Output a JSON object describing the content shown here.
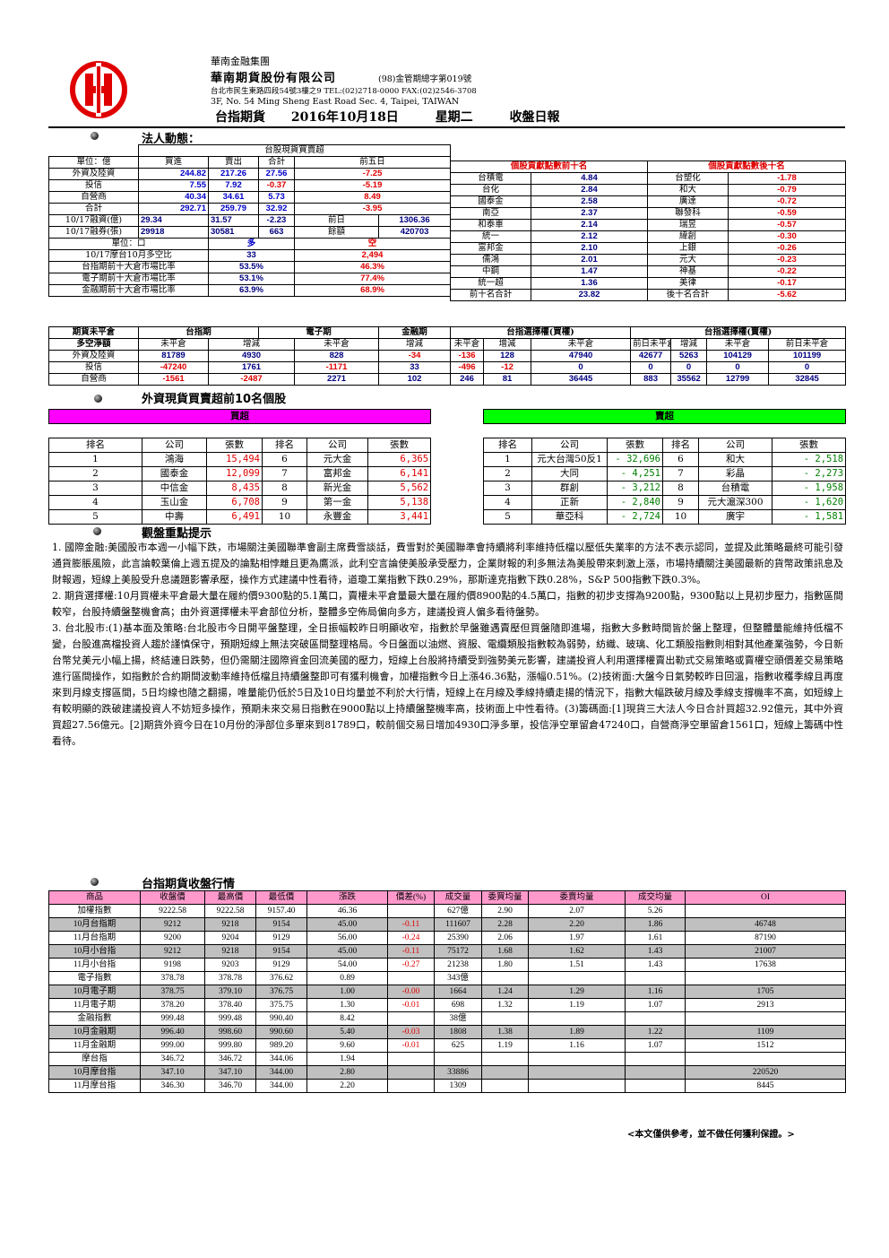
{
  "header": {
    "group": "華南金融集團",
    "company": "華南期貨股份有限公司",
    "license": "(98)金管期總字第019號",
    "address_zh": "台北市民生東路四段54號3樓之9 TEL:(02)2718-0000 FAX:(02)2546-3708",
    "address_en": "3F, No. 54 Ming Sheng East Road Sec. 4, Taipei, TAIWAN",
    "report_name": "台指期貨",
    "date": "2016年10月18日",
    "weekday": "星期二",
    "report_type": "收盤日報"
  },
  "institutional": {
    "title": "法人動態：",
    "spot_header": "台股現貨買賣超",
    "unit": "單位：億",
    "cols": [
      "買進",
      "賣出",
      "合計",
      "前五日"
    ],
    "rows": [
      {
        "name": "外資及陸資",
        "buy": "244.82",
        "sell": "217.26",
        "net": "27.56",
        "prev5": "-7.25"
      },
      {
        "name": "投信",
        "buy": "7.55",
        "sell": "7.92",
        "net": "-0.37",
        "prev5": "-5.19"
      },
      {
        "name": "自營商",
        "buy": "40.34",
        "sell": "34.61",
        "net": "5.73",
        "prev5": "8.49"
      },
      {
        "name": "合計",
        "buy": "292.71",
        "sell": "259.79",
        "net": "32.92",
        "prev5": "-3.95"
      }
    ],
    "margin_rows": [
      {
        "name": "10/17融資(億)",
        "a": "29.34",
        "b": "31.57",
        "c": "-2.23",
        "d_label": "前日",
        "d_val": "1306.36"
      },
      {
        "name": "10/17融券(張)",
        "a": "29918",
        "b": "30581",
        "c": "663",
        "d_label": "餘額",
        "d_val": "420703"
      }
    ],
    "ls_unit": "單位：口",
    "long_label": "多",
    "short_label": "空",
    "ls_rows": [
      {
        "name": "10/17摩台10月多空比",
        "long": "33",
        "short": "2,494"
      },
      {
        "name": "台指期前十大倉市場比率",
        "long": "53.5%",
        "short": "46.3%"
      },
      {
        "name": "電子期前十大倉市場比率",
        "long": "53.1%",
        "short": "77.4%"
      },
      {
        "name": "金融期前十大倉市場比率",
        "long": "63.9%",
        "short": "68.9%"
      }
    ],
    "top_pos_title": "個股貢獻點數前十名",
    "top_neg_title": "個股貢獻點數後十名",
    "contrib": [
      [
        "台積電",
        "4.84",
        "台塑化",
        "-1.78"
      ],
      [
        "台化",
        "2.84",
        "和大",
        "-0.79"
      ],
      [
        "國泰金",
        "2.58",
        "廣達",
        "-0.72"
      ],
      [
        "南亞",
        "2.37",
        "聯發科",
        "-0.59"
      ],
      [
        "和泰車",
        "2.14",
        "瑞昱",
        "-0.57"
      ],
      [
        "統一",
        "2.12",
        "緯創",
        "-0.30"
      ],
      [
        "富邦金",
        "2.10",
        "上銀",
        "-0.26"
      ],
      [
        "儒鴻",
        "2.01",
        "元大",
        "-0.23"
      ],
      [
        "中鋼",
        "1.47",
        "神基",
        "-0.22"
      ],
      [
        "統一超",
        "1.36",
        "美律",
        "-0.17"
      ]
    ],
    "contrib_total": [
      "前十名合計",
      "23.82",
      "後十名合計",
      "-5.62"
    ]
  },
  "oi_table": {
    "corner1": "期貨未平倉",
    "corner2": "多空淨額",
    "groups": [
      "台指期",
      "電子期",
      "金融期",
      "台指選擇權(買權)",
      "台指選擇權(賣權)"
    ],
    "sub": [
      "未平倉",
      "增減",
      "未平倉",
      "增減",
      "未平倉",
      "增減",
      "未平倉",
      "前日未平倉",
      "增減",
      "未平倉",
      "前日未平倉",
      "增減"
    ],
    "rows": [
      {
        "name": "外資及陸資",
        "v": [
          "81789",
          "4930",
          "828",
          "-34",
          "-136",
          "128",
          "47940",
          "42677",
          "5263",
          "104129",
          "101199",
          "2930"
        ]
      },
      {
        "name": "投信",
        "v": [
          "-47240",
          "1761",
          "-1171",
          "33",
          "-496",
          "-12",
          "0",
          "0",
          "0",
          "0",
          "0",
          "0"
        ]
      },
      {
        "name": "自營商",
        "v": [
          "-1561",
          "-2487",
          "2271",
          "102",
          "246",
          "81",
          "36445",
          "883",
          "35562",
          "12799",
          "32845",
          "-20046"
        ]
      }
    ]
  },
  "foreign_top10": {
    "title": "外資現貨買賣超前10名個股",
    "buy_title": "買超",
    "sell_title": "賣超",
    "cols": [
      "排名",
      "公司",
      "張數",
      "排名",
      "公司",
      "張數"
    ],
    "buy": [
      [
        "1",
        "鴻海",
        "15,494",
        "6",
        "元大金",
        "6,365"
      ],
      [
        "2",
        "國泰金",
        "12,099",
        "7",
        "富邦金",
        "6,141"
      ],
      [
        "3",
        "中信金",
        "8,435",
        "8",
        "新光金",
        "5,562"
      ],
      [
        "4",
        "玉山金",
        "6,708",
        "9",
        "第一金",
        "5,138"
      ],
      [
        "5",
        "中壽",
        "6,491",
        "10",
        "永豐金",
        "3,441"
      ]
    ],
    "sell": [
      [
        "1",
        "元大台灣50反1",
        "- 32,696",
        "6",
        "和大",
        "- 2,518"
      ],
      [
        "2",
        "大同",
        "- 4,251",
        "7",
        "彩晶",
        "- 2,273"
      ],
      [
        "3",
        "群創",
        "- 3,212",
        "8",
        "台積電",
        "- 1,958"
      ],
      [
        "4",
        "正新",
        "- 2,840",
        "9",
        "元大滬深300",
        "- 1,620"
      ],
      [
        "5",
        "華亞科",
        "- 2,724",
        "10",
        "廣宇",
        "- 1,581"
      ]
    ]
  },
  "commentary": {
    "title": "觀盤重點提示",
    "paragraphs": [
      "1. 國際金融:美國股市本週一小幅下跌，市場關注美國聯準會副主席費雪談話，費雪對於美國聯準會持續將利率維持低檔以壓低失業率的方法不表示認同，並提及此策略最終可能引發通貨膨脹風險，此言論較葉倫上週五提及的論點相悖離且更為鷹派，此利空言論使美股承受壓力，企業財報的利多無法為美股帶來刺激上漲，市場持續關注美國最新的貨幣政策訊息及財報週，短線上美股受升息議題影響承壓，操作方式建議中性看待，道瓊工業指數下跌0.29%，那斯達克指數下跌0.28%，S&P 500指數下跌0.3%。",
      "2. 期貨選擇權:10月買權未平倉最大量在履約價9300點的5.1萬口，賣權未平倉量最大量在履約價8900點的4.5萬口，指數的初步支撐為9200點，9300點以上見初步壓力，指數區間較窄，台股持續盤整機會高；由外資選擇權未平倉部位分析，整體多空佈局偏向多方，建議投資人偏多看待盤勢。",
      "3. 台北股市:(1)基本面及策略:台北股市今日開平盤整理，全日振幅較昨日明顯收窄，指數於早盤雖遇賣壓但買盤隨即進場，指數大多數時間皆於盤上整理，但整體量能維持低檔不變，台股進高檔投資人趨於謹慎保守，預期短線上無法突破區間整理格局。今日盤面以油燃、資服、電纜類股指數較為弱勢，紡織、玻璃、化工類股指數則相對其他產業強勢，今日新台幣兌美元小幅上揚，終結連日跌勢，但仍需關注國際資金回流美國的壓力，短線上台股將持續受到強勢美元影響，建議投資人利用選擇權賣出勒式交易策略或賣權空頭價差交易策略進行區間操作，如指數於合約期間波動率維持低檔且持續盤整即可有獲利機會，加權指數今日上漲46.36點，漲幅0.51%。(2)技術面:大盤今日氣勢較昨日回溫，指數收穫季線且再度來到月線支撐區間，5日均線也隨之翻揚，唯量能仍低於5日及10日均量並不利於大行情，短線上在月線及季線持續走揚的情況下，指數大幅跌破月線及季線支撐機率不高，如短線上有較明顯的跌破建議投資人不妨短多操作，預期未來交易日指數在9000點以上持續盤整機率高，技術面上中性看待。(3)籌碼面:[1]現貨三大法人今日合計買超32.92億元，其中外資買超27.56億元。[2]期貨外資今日在10月份的淨部位多單來到81789口，較前個交易日增加4930口淨多單，投信淨空單留倉47240口，自營商淨空單留倉1561口，短線上籌碼中性看待。"
    ]
  },
  "quotes": {
    "title": "台指期貨收盤行情",
    "headers": [
      "商品",
      "收盤價",
      "最高價",
      "最低價",
      "漲跌",
      "價差(%)",
      "成交量",
      "委買均量",
      "委賣均量",
      "成交均量",
      "OI"
    ],
    "rows": [
      {
        "c": [
          "加權指數",
          "9222.58",
          "9222.58",
          "9157.40",
          "46.36",
          "",
          "627億",
          "2.90",
          "2.07",
          "5.26",
          ""
        ],
        "shade": false
      },
      {
        "c": [
          "10月台指期",
          "9212",
          "9218",
          "9154",
          "45.00",
          "-0.11",
          "111607",
          "2.28",
          "2.20",
          "1.86",
          "46748"
        ],
        "shade": true
      },
      {
        "c": [
          "11月台指期",
          "9200",
          "9204",
          "9129",
          "56.00",
          "-0.24",
          "25390",
          "2.06",
          "1.97",
          "1.61",
          "87190"
        ],
        "shade": false
      },
      {
        "c": [
          "10月小台指",
          "9212",
          "9218",
          "9154",
          "45.00",
          "-0.11",
          "75172",
          "1.68",
          "1.62",
          "1.43",
          "21007"
        ],
        "shade": true
      },
      {
        "c": [
          "11月小台指",
          "9198",
          "9203",
          "9129",
          "54.00",
          "-0.27",
          "21238",
          "1.80",
          "1.51",
          "1.43",
          "17638"
        ],
        "shade": false
      },
      {
        "c": [
          "電子指數",
          "378.78",
          "378.78",
          "376.62",
          "0.89",
          "",
          "343億",
          "",
          "",
          "",
          ""
        ],
        "shade": false
      },
      {
        "c": [
          "10月電子期",
          "378.75",
          "379.10",
          "376.75",
          "1.00",
          "-0.00",
          "1664",
          "1.24",
          "1.29",
          "1.16",
          "1705"
        ],
        "shade": true
      },
      {
        "c": [
          "11月電子期",
          "378.20",
          "378.40",
          "375.75",
          "1.30",
          "-0.01",
          "698",
          "1.32",
          "1.19",
          "1.07",
          "2913"
        ],
        "shade": false
      },
      {
        "c": [
          "金融指數",
          "999.48",
          "999.48",
          "990.40",
          "8.42",
          "",
          "38億",
          "",
          "",
          "",
          ""
        ],
        "shade": false
      },
      {
        "c": [
          "10月金融期",
          "996.40",
          "998.60",
          "990.60",
          "5.40",
          "-0.03",
          "1808",
          "1.38",
          "1.89",
          "1.22",
          "1109"
        ],
        "shade": true
      },
      {
        "c": [
          "11月金融期",
          "999.00",
          "999.80",
          "989.20",
          "9.60",
          "-0.01",
          "625",
          "1.19",
          "1.16",
          "1.07",
          "1512"
        ],
        "shade": false
      },
      {
        "c": [
          "摩台指",
          "346.72",
          "346.72",
          "344.06",
          "1.94",
          "",
          "",
          "",
          "",
          "",
          ""
        ],
        "shade": false
      },
      {
        "c": [
          "10月摩台指",
          "347.10",
          "347.10",
          "344.00",
          "2.80",
          "",
          "33886",
          "",
          "",
          "",
          "220520"
        ],
        "shade": true
      },
      {
        "c": [
          "11月摩台指",
          "346.30",
          "346.70",
          "344.00",
          "2.20",
          "",
          "1309",
          "",
          "",
          "",
          "8445"
        ],
        "shade": false
      }
    ],
    "disclaimer": "<本文僅供參考，並不做任何獲利保證。>"
  },
  "colors": {
    "logo_red": "#e00000",
    "buy_header": "#ff00ff",
    "sell_header": "#00ff00",
    "quote_header": "#ff99cc",
    "shade": "#c0c0c0"
  }
}
